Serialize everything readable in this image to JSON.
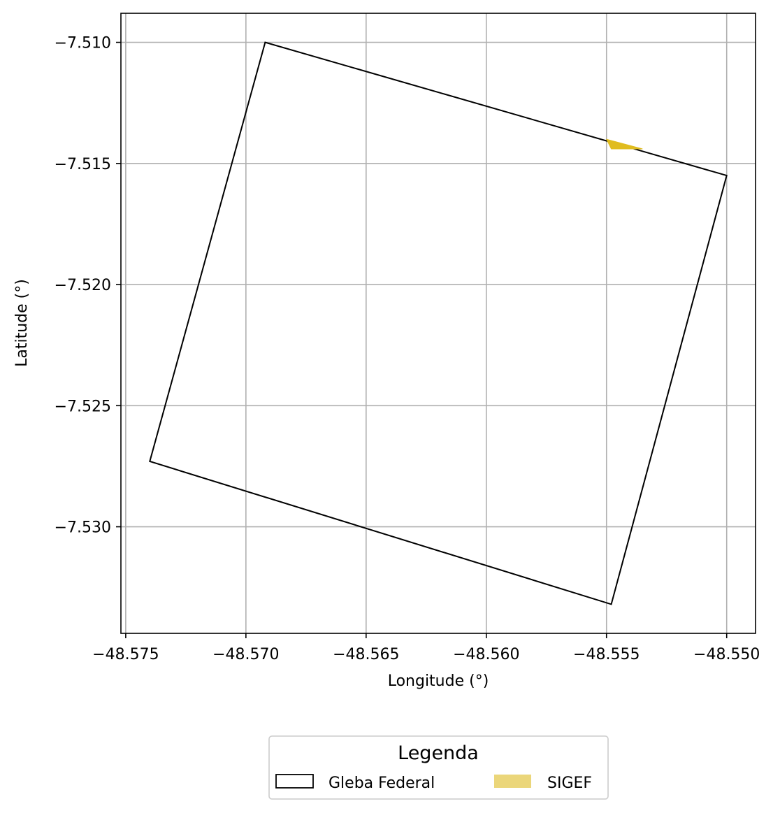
{
  "chart_data": {
    "type": "map",
    "xlabel": "Longitude (°)",
    "ylabel": "Latitude (°)",
    "xlim": [
      -48.5752,
      -48.5488
    ],
    "ylim": [
      -7.5344,
      -7.5088
    ],
    "x_ticks": [
      {
        "value": -48.575,
        "label": "−48.575"
      },
      {
        "value": -48.57,
        "label": "−48.570"
      },
      {
        "value": -48.565,
        "label": "−48.565"
      },
      {
        "value": -48.56,
        "label": "−48.560"
      },
      {
        "value": -48.555,
        "label": "−48.555"
      },
      {
        "value": -48.55,
        "label": "−48.550"
      }
    ],
    "y_ticks": [
      {
        "value": -7.51,
        "label": "−7.510"
      },
      {
        "value": -7.515,
        "label": "−7.515"
      },
      {
        "value": -7.52,
        "label": "−7.520"
      },
      {
        "value": -7.525,
        "label": "−7.525"
      },
      {
        "value": -7.53,
        "label": "−7.530"
      }
    ],
    "grid": true,
    "layers": [
      {
        "name": "Gleba Federal",
        "style": "outline",
        "stroke": "#000000",
        "fill": "none",
        "polygon": [
          [
            -48.5692,
            -7.51
          ],
          [
            -48.55,
            -7.5155
          ],
          [
            -48.5548,
            -7.5332
          ],
          [
            -48.574,
            -7.5273
          ]
        ]
      },
      {
        "name": "SIGEF",
        "style": "filled",
        "fill": "#e0bc1f",
        "fill_opacity": 1,
        "polygon": [
          [
            -48.555,
            -7.514
          ],
          [
            -48.5535,
            -7.5144
          ],
          [
            -48.5548,
            -7.5144
          ],
          [
            -48.5549,
            -7.5142
          ]
        ]
      }
    ],
    "legend": {
      "title": "Legenda",
      "placement": "bottom-center",
      "entries": [
        {
          "label": "Gleba Federal",
          "swatch": "outline",
          "stroke": "#000000",
          "fill": "#ffffff"
        },
        {
          "label": "SIGEF",
          "swatch": "filled",
          "fill": "#ebd67a"
        }
      ]
    }
  }
}
